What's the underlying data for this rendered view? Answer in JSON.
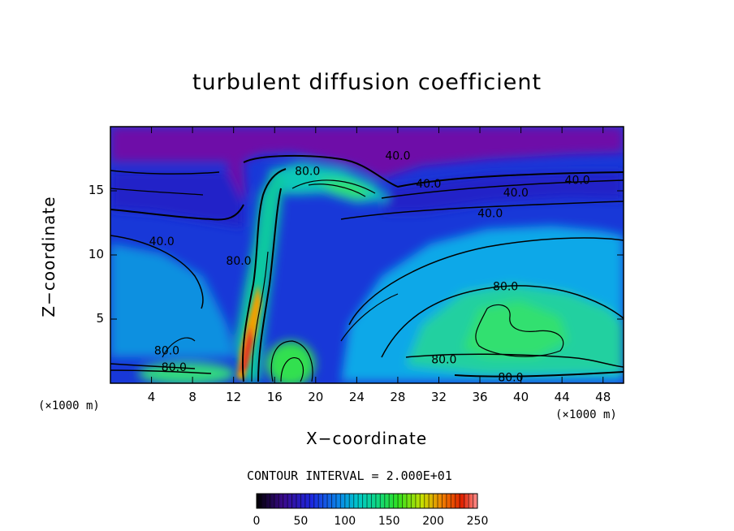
{
  "chart_data": {
    "type": "heatmap",
    "title": "turbulent diffusion coefficient",
    "xlabel": "X−coordinate",
    "ylabel": "Z−coordinate",
    "x_unit": "(×1000 m)",
    "x_unit_right": "(×1000 m)",
    "xlim": [
      0,
      50
    ],
    "ylim": [
      0,
      20
    ],
    "x_ticks": [
      4,
      8,
      12,
      16,
      20,
      24,
      28,
      32,
      36,
      40,
      44,
      48
    ],
    "y_ticks": [
      5,
      10,
      15
    ],
    "contour_interval_text": "CONTOUR INTERVAL = 2.000E+01",
    "contour_labels": [
      {
        "text": "40.0",
        "x": 28.0,
        "z": 17.7
      },
      {
        "text": "40.0",
        "x": 31.0,
        "z": 15.5
      },
      {
        "text": "40.0",
        "x": 39.5,
        "z": 14.8
      },
      {
        "text": "40.0",
        "x": 45.5,
        "z": 15.8
      },
      {
        "text": "40.0",
        "x": 37.0,
        "z": 13.2
      },
      {
        "text": "40.0",
        "x": 5.0,
        "z": 11.0
      },
      {
        "text": "80.0",
        "x": 38.5,
        "z": 7.5
      },
      {
        "text": "80.0",
        "x": 32.5,
        "z": 1.8
      },
      {
        "text": "80.0",
        "x": 39.0,
        "z": 0.4
      },
      {
        "text": "80.0",
        "x": 6.2,
        "z": 1.2
      },
      {
        "text": "80.0",
        "x": 5.5,
        "z": 2.5
      },
      {
        "text": "80.0",
        "x": 19.2,
        "z": 16.5
      },
      {
        "text": "80.0",
        "x": 12.5,
        "z": 9.5
      }
    ],
    "colorbar": {
      "min": 0,
      "max": 250,
      "ticks": [
        0,
        50,
        100,
        150,
        200,
        250
      ]
    }
  }
}
